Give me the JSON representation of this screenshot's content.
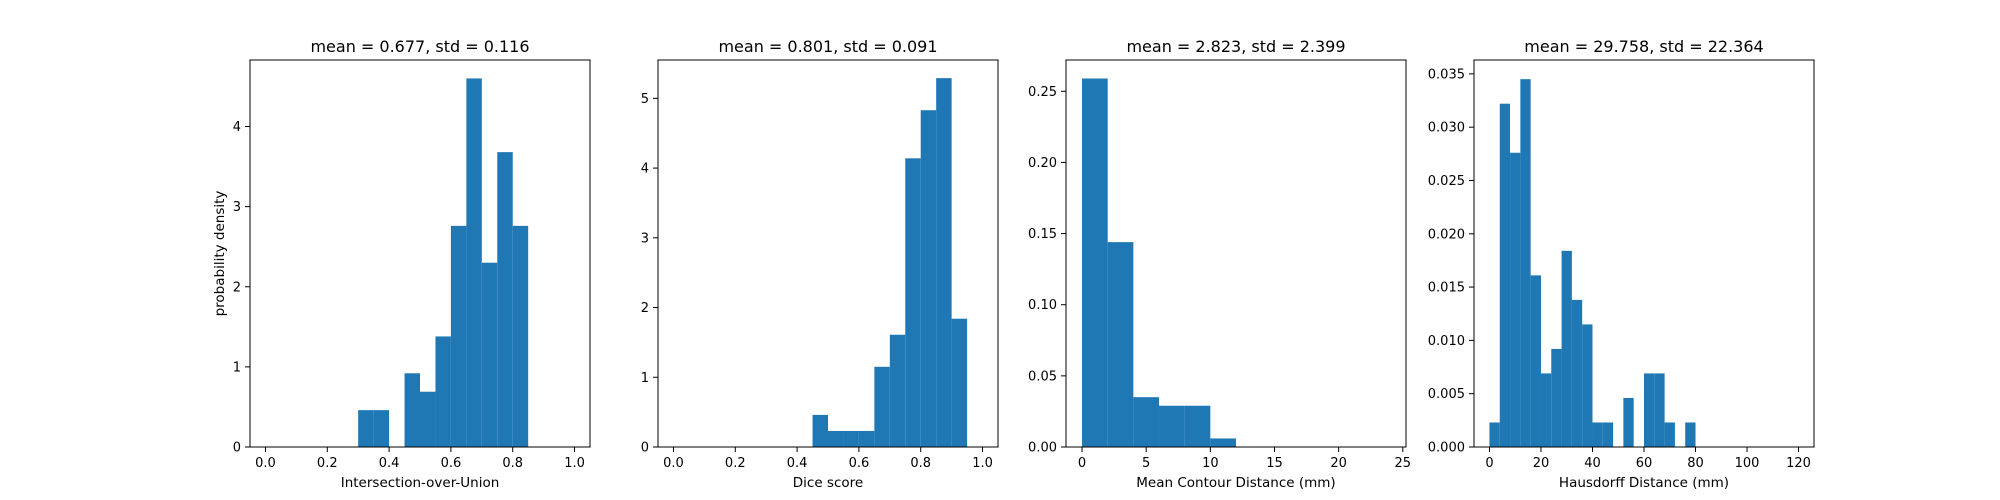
{
  "chart_data": [
    {
      "type": "histogram",
      "title": "mean = 0.677, std = 0.116",
      "xlabel": "Intersection-over-Union",
      "ylabel": "probability density",
      "xlim": [
        -0.05,
        1.05
      ],
      "ylim": [
        0,
        4.83
      ],
      "xticks": [
        0.0,
        0.2,
        0.4,
        0.6,
        0.8,
        1.0
      ],
      "xtick_labels": [
        "0.0",
        "0.2",
        "0.4",
        "0.6",
        "0.8",
        "1.0"
      ],
      "yticks": [
        0,
        1,
        2,
        3,
        4
      ],
      "ytick_labels": [
        "0",
        "1",
        "2",
        "3",
        "4"
      ],
      "bins": [
        {
          "x0": 0.3,
          "x1": 0.35,
          "y": 0.46
        },
        {
          "x0": 0.35,
          "x1": 0.4,
          "y": 0.46
        },
        {
          "x0": 0.45,
          "x1": 0.5,
          "y": 0.92
        },
        {
          "x0": 0.5,
          "x1": 0.55,
          "y": 0.69
        },
        {
          "x0": 0.55,
          "x1": 0.6,
          "y": 1.38
        },
        {
          "x0": 0.6,
          "x1": 0.65,
          "y": 2.76
        },
        {
          "x0": 0.65,
          "x1": 0.7,
          "y": 4.6
        },
        {
          "x0": 0.7,
          "x1": 0.75,
          "y": 2.3
        },
        {
          "x0": 0.75,
          "x1": 0.8,
          "y": 3.68
        },
        {
          "x0": 0.8,
          "x1": 0.85,
          "y": 2.76
        }
      ]
    },
    {
      "type": "histogram",
      "title": "mean = 0.801, std = 0.091",
      "xlabel": "Dice score",
      "ylabel": "",
      "xlim": [
        -0.05,
        1.05
      ],
      "ylim": [
        0,
        5.55
      ],
      "xticks": [
        0.0,
        0.2,
        0.4,
        0.6,
        0.8,
        1.0
      ],
      "xtick_labels": [
        "0.0",
        "0.2",
        "0.4",
        "0.6",
        "0.8",
        "1.0"
      ],
      "yticks": [
        0,
        1,
        2,
        3,
        4,
        5
      ],
      "ytick_labels": [
        "0",
        "1",
        "2",
        "3",
        "4",
        "5"
      ],
      "bins": [
        {
          "x0": 0.45,
          "x1": 0.5,
          "y": 0.46
        },
        {
          "x0": 0.5,
          "x1": 0.55,
          "y": 0.23
        },
        {
          "x0": 0.55,
          "x1": 0.6,
          "y": 0.23
        },
        {
          "x0": 0.6,
          "x1": 0.65,
          "y": 0.23
        },
        {
          "x0": 0.65,
          "x1": 0.7,
          "y": 1.15
        },
        {
          "x0": 0.7,
          "x1": 0.75,
          "y": 1.61
        },
        {
          "x0": 0.75,
          "x1": 0.8,
          "y": 4.14
        },
        {
          "x0": 0.8,
          "x1": 0.85,
          "y": 4.83
        },
        {
          "x0": 0.85,
          "x1": 0.9,
          "y": 5.29
        },
        {
          "x0": 0.9,
          "x1": 0.95,
          "y": 1.84
        }
      ]
    },
    {
      "type": "histogram",
      "title": "mean = 2.823, std = 2.399",
      "xlabel": "Mean Contour Distance (mm)",
      "ylabel": "",
      "xlim": [
        -1.25,
        25.25
      ],
      "ylim": [
        0,
        0.272
      ],
      "xticks": [
        0,
        5,
        10,
        15,
        20,
        25
      ],
      "xtick_labels": [
        "0",
        "5",
        "10",
        "15",
        "20",
        "25"
      ],
      "yticks": [
        0.0,
        0.05,
        0.1,
        0.15,
        0.2,
        0.25
      ],
      "ytick_labels": [
        "0.00",
        "0.05",
        "0.10",
        "0.15",
        "0.20",
        "0.25"
      ],
      "bins": [
        {
          "x0": 0,
          "x1": 2,
          "y": 0.259
        },
        {
          "x0": 2,
          "x1": 4,
          "y": 0.144
        },
        {
          "x0": 4,
          "x1": 6,
          "y": 0.035
        },
        {
          "x0": 6,
          "x1": 8,
          "y": 0.029
        },
        {
          "x0": 8,
          "x1": 10,
          "y": 0.029
        },
        {
          "x0": 10,
          "x1": 12,
          "y": 0.006
        }
      ]
    },
    {
      "type": "histogram",
      "title": "mean = 29.758, std = 22.364",
      "xlabel": "Hausdorff Distance (mm)",
      "ylabel": "",
      "xlim": [
        -6,
        126
      ],
      "ylim": [
        0,
        0.0363
      ],
      "xticks": [
        0,
        20,
        40,
        60,
        80,
        100,
        120
      ],
      "xtick_labels": [
        "0",
        "20",
        "40",
        "60",
        "80",
        "100",
        "120"
      ],
      "yticks": [
        0.0,
        0.005,
        0.01,
        0.015,
        0.02,
        0.025,
        0.03,
        0.035
      ],
      "ytick_labels": [
        "0.000",
        "0.005",
        "0.010",
        "0.015",
        "0.020",
        "0.025",
        "0.030",
        "0.035"
      ],
      "bins": [
        {
          "x0": 0,
          "x1": 4,
          "y": 0.0023
        },
        {
          "x0": 4,
          "x1": 8,
          "y": 0.0322
        },
        {
          "x0": 8,
          "x1": 12,
          "y": 0.0276
        },
        {
          "x0": 12,
          "x1": 16,
          "y": 0.0345
        },
        {
          "x0": 16,
          "x1": 20,
          "y": 0.0161
        },
        {
          "x0": 20,
          "x1": 24,
          "y": 0.0069
        },
        {
          "x0": 24,
          "x1": 28,
          "y": 0.0092
        },
        {
          "x0": 28,
          "x1": 32,
          "y": 0.0184
        },
        {
          "x0": 32,
          "x1": 36,
          "y": 0.0138
        },
        {
          "x0": 36,
          "x1": 40,
          "y": 0.0115
        },
        {
          "x0": 40,
          "x1": 44,
          "y": 0.0023
        },
        {
          "x0": 44,
          "x1": 48,
          "y": 0.0023
        },
        {
          "x0": 52,
          "x1": 56,
          "y": 0.0046
        },
        {
          "x0": 60,
          "x1": 64,
          "y": 0.0069
        },
        {
          "x0": 64,
          "x1": 68,
          "y": 0.0069
        },
        {
          "x0": 68,
          "x1": 72,
          "y": 0.0023
        },
        {
          "x0": 76,
          "x1": 80,
          "y": 0.0023
        }
      ]
    }
  ],
  "style": {
    "bar_color": "#1f77b4",
    "axis_color": "#000000",
    "background": "#ffffff"
  }
}
